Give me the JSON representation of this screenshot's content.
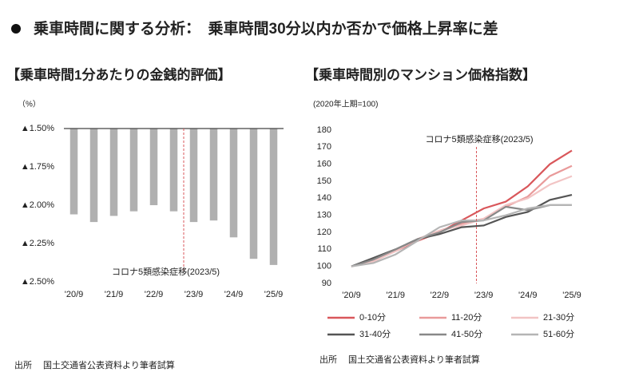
{
  "page_title": "乗車時間に関する分析：　乗車時間30分以内か否かで価格上昇率に差",
  "chart_data": [
    {
      "type": "bar",
      "title": "【乗車時間1分あたりの金銭的評価】",
      "unit_label": "（%）",
      "categories": [
        "'20/9",
        null,
        "'21/9",
        null,
        "'22/9",
        null,
        "'23/9",
        null,
        "'24/9",
        null,
        "'25/9"
      ],
      "values": [
        -2.06,
        -2.11,
        -2.07,
        -2.04,
        -2.0,
        -2.04,
        -2.11,
        -2.1,
        -2.21,
        -2.35,
        -2.39
      ],
      "color": "#b0b0b0",
      "ylim": [
        -2.5,
        -1.5
      ],
      "yticks": [
        {
          "value": -1.5,
          "label": "▲1.50%"
        },
        {
          "value": -1.75,
          "label": "▲1.75%"
        },
        {
          "value": -2.0,
          "label": "▲2.00%"
        },
        {
          "value": -2.25,
          "label": "▲2.25%"
        },
        {
          "value": -2.5,
          "label": "▲2.50%"
        }
      ],
      "annotation": "コロナ5類感染症移(2023/5)",
      "source": "出所　 国土交通省公表資料より筆者試算"
    },
    {
      "type": "line",
      "title": "【乗車時間別のマンション価格指数】",
      "subtitle": "(2020年上期=100)",
      "categories": [
        "'20/9",
        null,
        "'21/9",
        null,
        "'22/9",
        null,
        "'23/9",
        null,
        "'24/9",
        null,
        "'25/9"
      ],
      "series": [
        {
          "name": "0-10分",
          "color": "#d9575b",
          "values": [
            100,
            104,
            109,
            115,
            120,
            127,
            134,
            138,
            147,
            160,
            168
          ]
        },
        {
          "name": "11-20分",
          "color": "#e99a9a",
          "values": [
            100,
            103,
            109,
            116,
            121,
            125,
            128,
            135,
            141,
            153,
            159
          ]
        },
        {
          "name": "21-30分",
          "color": "#f2c4c4",
          "values": [
            100,
            103,
            109,
            116,
            121,
            124,
            128,
            136,
            140,
            148,
            153
          ]
        },
        {
          "name": "31-40分",
          "color": "#555555",
          "values": [
            100,
            105,
            110,
            116,
            119,
            123,
            124,
            129,
            132,
            139,
            142
          ]
        },
        {
          "name": "41-50分",
          "color": "#888888",
          "values": [
            100,
            104,
            110,
            116,
            120,
            126,
            127,
            135,
            133,
            136,
            136
          ]
        },
        {
          "name": "51-60分",
          "color": "#b5b5b5",
          "values": [
            100,
            102,
            107,
            115,
            123,
            127,
            127,
            130,
            134,
            136,
            136
          ]
        }
      ],
      "ylim": [
        90,
        180
      ],
      "yticks": [
        90,
        100,
        110,
        120,
        130,
        140,
        150,
        160,
        170,
        180
      ],
      "annotation": "コロナ5類感染症移(2023/5)",
      "source": "出所　 国土交通省公表資料より筆者試算"
    }
  ]
}
